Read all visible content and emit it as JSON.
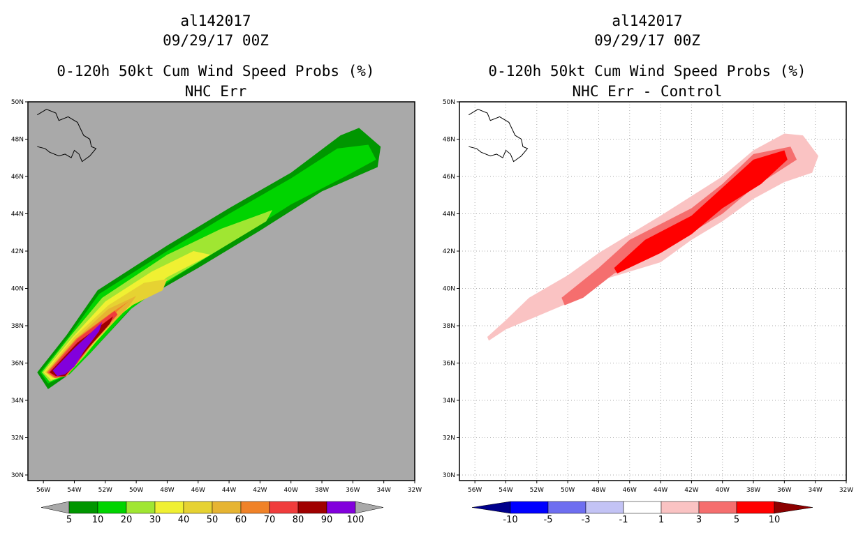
{
  "chart_data": [
    {
      "type": "contour-map",
      "title_line1": "al142017",
      "title_line2": "09/29/17 00Z",
      "title_line3": "0-120h 50kt Cum Wind Speed Probs (%)",
      "title_line4": "NHC Err",
      "x_ticks": [
        "56W",
        "54W",
        "52W",
        "50W",
        "48W",
        "46W",
        "44W",
        "42W",
        "40W",
        "38W",
        "36W",
        "34W",
        "32W"
      ],
      "y_ticks": [
        "50N",
        "48N",
        "46N",
        "44N",
        "42N",
        "40N",
        "38N",
        "36N",
        "34N",
        "32N",
        "30N"
      ],
      "lon_range": [
        -57,
        -32
      ],
      "lat_range": [
        29.7,
        50
      ],
      "background": "#a9a9a9",
      "grid": false,
      "colorbar": {
        "levels": [
          "5",
          "10",
          "20",
          "30",
          "40",
          "50",
          "60",
          "70",
          "80",
          "90",
          "100"
        ],
        "colors": [
          "#009600",
          "#00d400",
          "#a0e632",
          "#f0f032",
          "#e6d232",
          "#e6b432",
          "#f08228",
          "#f03c3c",
          "#a00000",
          "#8200dc"
        ],
        "under_color": "#a9a9a9",
        "over_color": "#a9a9a9"
      },
      "contours": [
        {
          "level": "5",
          "color": "#009600",
          "points": [
            [
              -56.4,
              35.5
            ],
            [
              -54.5,
              37.5
            ],
            [
              -52.5,
              39.9
            ],
            [
              -48,
              42.3
            ],
            [
              -44,
              44.3
            ],
            [
              -40,
              46.2
            ],
            [
              -36.8,
              48.2
            ],
            [
              -35.6,
              48.6
            ],
            [
              -34.2,
              47.6
            ],
            [
              -34.4,
              46.5
            ],
            [
              -38,
              45.2
            ],
            [
              -42,
              43.1
            ],
            [
              -46,
              41.1
            ],
            [
              -50,
              39.2
            ],
            [
              -53,
              36.5
            ],
            [
              -54.5,
              35.3
            ],
            [
              -55.7,
              34.6
            ]
          ]
        },
        {
          "level": "10",
          "color": "#00d400",
          "points": [
            [
              -56.2,
              35.5
            ],
            [
              -54.3,
              37.5
            ],
            [
              -52.4,
              39.7
            ],
            [
              -48,
              42
            ],
            [
              -44,
              44
            ],
            [
              -40,
              45.9
            ],
            [
              -37,
              47.5
            ],
            [
              -35,
              47.7
            ],
            [
              -34.5,
              46.9
            ],
            [
              -36.5,
              46
            ],
            [
              -40,
              44.5
            ],
            [
              -44,
              42.4
            ],
            [
              -47.5,
              40.6
            ],
            [
              -50.5,
              38.8
            ],
            [
              -53,
              36.5
            ],
            [
              -54.3,
              35.4
            ],
            [
              -55.7,
              34.9
            ]
          ]
        },
        {
          "level": "20",
          "color": "#a0e632",
          "points": [
            [
              -56.1,
              35.5
            ],
            [
              -54.2,
              37.5
            ],
            [
              -52.2,
              39.5
            ],
            [
              -48,
              41.8
            ],
            [
              -44.5,
              43.2
            ],
            [
              -41.2,
              44.2
            ],
            [
              -41.6,
              43.6
            ],
            [
              -45,
              41.9
            ],
            [
              -49,
              39.9
            ],
            [
              -51.5,
              38.3
            ],
            [
              -53.3,
              36.4
            ],
            [
              -54.4,
              35.4
            ],
            [
              -55.6,
              35
            ]
          ]
        },
        {
          "level": "30",
          "color": "#f0f032",
          "points": [
            [
              -56,
              35.5
            ],
            [
              -54.1,
              37.4
            ],
            [
              -52,
              39.3
            ],
            [
              -49,
              40.9
            ],
            [
              -46.3,
              42
            ],
            [
              -45.2,
              41.8
            ],
            [
              -48,
              40.6
            ],
            [
              -51,
              38.6
            ],
            [
              -53.3,
              36.5
            ],
            [
              -54.4,
              35.4
            ],
            [
              -55.5,
              35.1
            ]
          ]
        },
        {
          "level": "40",
          "color": "#e6d232",
          "points": [
            [
              -55.9,
              35.5
            ],
            [
              -54,
              37.4
            ],
            [
              -51.8,
              39.1
            ],
            [
              -49.5,
              40.3
            ],
            [
              -48,
              40.5
            ],
            [
              -48.3,
              39.9
            ],
            [
              -50.5,
              39
            ],
            [
              -52.6,
              37.2
            ],
            [
              -53.6,
              36.2
            ],
            [
              -54.5,
              35.3
            ],
            [
              -55.4,
              35.2
            ]
          ]
        },
        {
          "level": "50",
          "color": "#e6b432",
          "points": [
            [
              -55.8,
              35.5
            ],
            [
              -53.9,
              37.3
            ],
            [
              -51.8,
              38.9
            ],
            [
              -50,
              39.6
            ],
            [
              -50.5,
              39
            ],
            [
              -52.5,
              37.3
            ],
            [
              -53.6,
              36.2
            ],
            [
              -54.5,
              35.3
            ],
            [
              -55.3,
              35.2
            ]
          ]
        },
        {
          "level": "60",
          "color": "#f08228",
          "points": [
            [
              -55.8,
              35.5
            ],
            [
              -53.9,
              37.3
            ],
            [
              -51.6,
              38.7
            ],
            [
              -50.5,
              39.3
            ],
            [
              -51.2,
              38.8
            ],
            [
              -52.8,
              37.1
            ],
            [
              -53.7,
              36.1
            ],
            [
              -54.5,
              35.3
            ],
            [
              -55.3,
              35.2
            ]
          ]
        },
        {
          "level": "70",
          "color": "#f03c3c",
          "points": [
            [
              -55.7,
              35.5
            ],
            [
              -53.8,
              37.3
            ],
            [
              -51.4,
              38.8
            ],
            [
              -51.2,
              38.6
            ],
            [
              -52.9,
              37
            ],
            [
              -53.8,
              36
            ],
            [
              -54.6,
              35.3
            ],
            [
              -55.2,
              35.2
            ]
          ]
        },
        {
          "level": "80",
          "color": "#a00000",
          "points": [
            [
              -55.6,
              35.5
            ],
            [
              -53.8,
              37.1
            ],
            [
              -51.5,
              38.5
            ],
            [
              -51.7,
              38.1
            ],
            [
              -53.1,
              36.8
            ],
            [
              -53.9,
              36
            ],
            [
              -54.6,
              35.3
            ],
            [
              -55.2,
              35.3
            ]
          ]
        },
        {
          "level": "90",
          "color": "#8200dc",
          "points": [
            [
              -55.4,
              35.6
            ],
            [
              -54,
              36.8
            ],
            [
              -52.2,
              38.2
            ],
            [
              -52.4,
              37.7
            ],
            [
              -53.4,
              36.6
            ],
            [
              -54,
              35.8
            ],
            [
              -54.6,
              35.4
            ],
            [
              -55.1,
              35.3
            ]
          ]
        }
      ]
    },
    {
      "type": "contour-map",
      "title_line1": "al142017",
      "title_line2": "09/29/17 00Z",
      "title_line3": "0-120h 50kt Cum Wind Speed Probs (%)",
      "title_line4": "NHC Err - Control",
      "x_ticks": [
        "56W",
        "54W",
        "52W",
        "50W",
        "48W",
        "46W",
        "44W",
        "42W",
        "40W",
        "38W",
        "36W",
        "34W",
        "32W"
      ],
      "y_ticks": [
        "50N",
        "48N",
        "46N",
        "44N",
        "42N",
        "40N",
        "38N",
        "36N",
        "34N",
        "32N",
        "30N"
      ],
      "lon_range": [
        -57,
        -32
      ],
      "lat_range": [
        29.7,
        50
      ],
      "background": "#ffffff",
      "grid": true,
      "colorbar": {
        "levels": [
          "-10",
          "-5",
          "-3",
          "-1",
          "1",
          "3",
          "5",
          "10"
        ],
        "colors": [
          "#0000ff",
          "#6e6ef0",
          "#c3c3f5",
          "#ffffff",
          "#fac3c3",
          "#f56e6e",
          "#ff0000"
        ],
        "under_color": "#00008c",
        "over_color": "#8c0000"
      },
      "contours": [
        {
          "level": "1",
          "color": "#fac3c3",
          "points": [
            [
              -55.2,
              37.4
            ],
            [
              -54,
              38.3
            ],
            [
              -52.5,
              39.5
            ],
            [
              -50,
              40.7
            ],
            [
              -48,
              41.9
            ],
            [
              -44,
              43.9
            ],
            [
              -40,
              46
            ],
            [
              -38,
              47.4
            ],
            [
              -36,
              48.3
            ],
            [
              -34.8,
              48.2
            ],
            [
              -33.8,
              47.1
            ],
            [
              -34.2,
              46.2
            ],
            [
              -36,
              45.7
            ],
            [
              -38,
              44.8
            ],
            [
              -40,
              43.6
            ],
            [
              -42,
              42.6
            ],
            [
              -44,
              41.4
            ],
            [
              -48,
              40.4
            ],
            [
              -50,
              39.2
            ],
            [
              -52,
              38.5
            ],
            [
              -54,
              37.8
            ],
            [
              -55.1,
              37.2
            ]
          ]
        },
        {
          "level": "3",
          "color": "#f56e6e",
          "points": [
            [
              -50.4,
              39.5
            ],
            [
              -48,
              41.1
            ],
            [
              -46,
              42.6
            ],
            [
              -42,
              44.3
            ],
            [
              -40,
              45.6
            ],
            [
              -38,
              47.2
            ],
            [
              -35.6,
              47.6
            ],
            [
              -35.2,
              46.9
            ],
            [
              -38,
              45.4
            ],
            [
              -40,
              44
            ],
            [
              -44,
              42
            ],
            [
              -47,
              40.8
            ],
            [
              -49,
              39.5
            ],
            [
              -50.2,
              39.1
            ]
          ]
        },
        {
          "level": "5",
          "color": "#ff0000",
          "points": [
            [
              -47,
              41.1
            ],
            [
              -45,
              42.6
            ],
            [
              -42,
              43.9
            ],
            [
              -40,
              45.4
            ],
            [
              -38,
              46.9
            ],
            [
              -36,
              47.4
            ],
            [
              -35.8,
              46.9
            ],
            [
              -37.5,
              45.6
            ],
            [
              -40,
              44.3
            ],
            [
              -42,
              42.9
            ],
            [
              -44,
              41.9
            ],
            [
              -46.8,
              40.8
            ]
          ]
        }
      ]
    }
  ]
}
